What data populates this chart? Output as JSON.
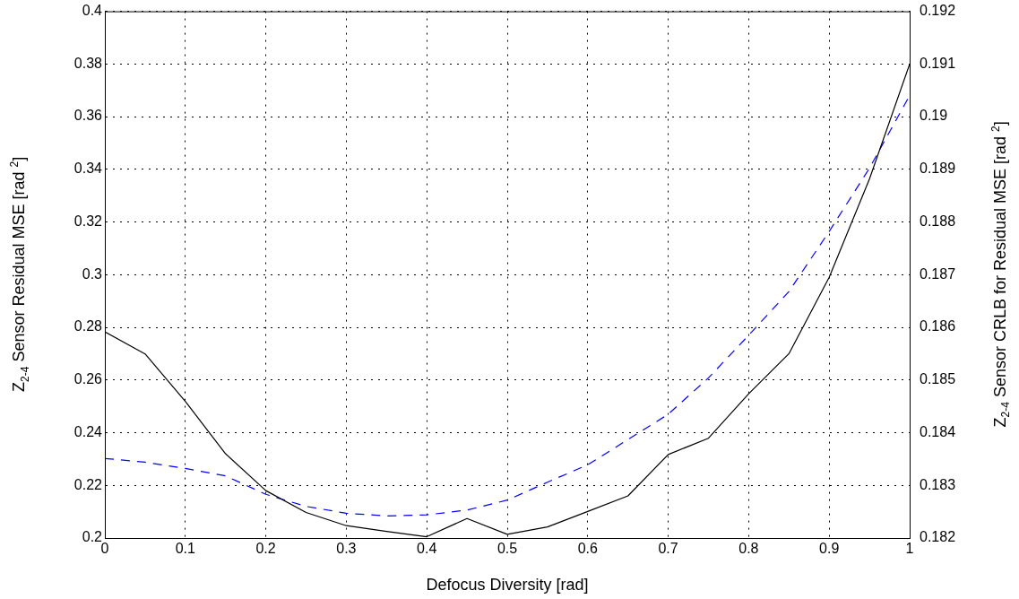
{
  "chart_data": {
    "type": "line",
    "xlabel": "Defocus Diversity [rad]",
    "ylabel": "Z$_{2-4}$ Sensor Residual MSE [rad $^{2}$]",
    "y2label": "Z$_{2-4}$ Sensor CRLB for Residual MSE [rad $^{2}$]",
    "x": [
      0,
      0.05,
      0.1,
      0.15,
      0.2,
      0.25,
      0.3,
      0.35,
      0.4,
      0.45,
      0.5,
      0.55,
      0.6,
      0.65,
      0.7,
      0.75,
      0.8,
      0.85,
      0.9,
      0.95,
      1
    ],
    "series": [
      {
        "color": "#000000",
        "line_style": "solid",
        "values": [
          0.2783,
          0.2699,
          0.2519,
          0.232,
          0.218,
          0.2097,
          0.2047,
          0.2025,
          0.2005,
          0.2074,
          0.2014,
          0.2042,
          0.2101,
          0.216,
          0.2317,
          0.2379,
          0.2548,
          0.27,
          0.299,
          0.3363,
          0.38
        ]
      },
      {
        "color": "#0000ff",
        "line_style": "dashed",
        "axis": "y2",
        "values": [
          0.18351,
          0.18344,
          0.18332,
          0.18318,
          0.18283,
          0.1826,
          0.18247,
          0.18242,
          0.18244,
          0.18253,
          0.18272,
          0.18306,
          0.18339,
          0.18387,
          0.18435,
          0.18504,
          0.18585,
          0.18668,
          0.18782,
          0.18902,
          0.1904
        ]
      }
    ],
    "xlim": [
      0,
      1
    ],
    "xticks": [
      0,
      0.1,
      0.2,
      0.3,
      0.4,
      0.5,
      0.6,
      0.7,
      0.8,
      0.9,
      1
    ],
    "ylim": [
      0.2,
      0.4
    ],
    "yticks": [
      0.2,
      0.22,
      0.24,
      0.26,
      0.28,
      0.3,
      0.32,
      0.34,
      0.36,
      0.38,
      0.4
    ],
    "y2lim": [
      0.182,
      0.192
    ],
    "y2ticks": [
      0.182,
      0.183,
      0.184,
      0.185,
      0.186,
      0.187,
      0.188,
      0.189,
      0.19,
      0.191,
      0.192
    ],
    "grid": true,
    "marker": "none"
  }
}
